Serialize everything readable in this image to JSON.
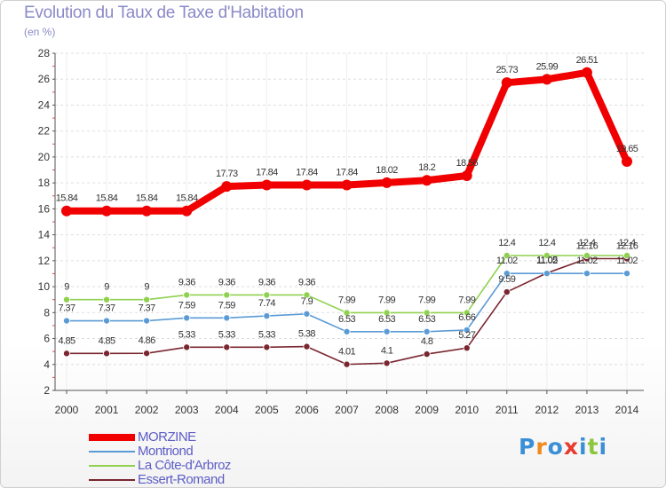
{
  "title": "Evolution du Taux de Taxe d'Habitation",
  "unit": "(en %)",
  "logo": {
    "letters": [
      "P",
      "r",
      "o",
      "x",
      "i",
      "t",
      "i"
    ],
    "colors": [
      "#3a8fd6",
      "#f08a1c",
      "#3a8fd6",
      "#e83a2e",
      "#3a8fd6",
      "#8cc63f",
      "#3a8fd6"
    ]
  },
  "chart_data": {
    "type": "line",
    "x": [
      "2000",
      "2001",
      "2002",
      "2003",
      "2004",
      "2005",
      "2006",
      "2007",
      "2008",
      "2009",
      "2010",
      "2011",
      "2012",
      "2013",
      "2014"
    ],
    "ylim": [
      2,
      28
    ],
    "yticks": [
      "2",
      "4",
      "6",
      "8",
      "10",
      "12",
      "14",
      "16",
      "18",
      "20",
      "22",
      "24",
      "26",
      "28"
    ],
    "grid": "horizontal dashed",
    "legend_position": "bottom-left",
    "series": [
      {
        "name": "MORZINE",
        "color": "#f00000",
        "values": [
          15.84,
          15.84,
          15.84,
          15.84,
          17.73,
          17.84,
          17.84,
          17.84,
          18.02,
          18.2,
          18.56,
          25.73,
          25.99,
          26.51,
          19.65
        ],
        "labels": [
          "15.84",
          "15.84",
          "15.84",
          "15.84",
          "17.73",
          "17.84",
          "17.84",
          "17.84",
          "18.02",
          "18.2",
          "18.56",
          "25.73",
          "25.99",
          "26.51",
          "19.65"
        ]
      },
      {
        "name": "Montriond",
        "color": "#5b9bd5",
        "values": [
          7.37,
          7.37,
          7.37,
          7.59,
          7.59,
          7.74,
          7.9,
          6.53,
          6.53,
          6.53,
          6.66,
          11.02,
          11.02,
          11.02,
          11.02
        ],
        "labels": [
          "7.37",
          "7.37",
          "7.37",
          "7.59",
          "7.59",
          "7.74",
          "7.9",
          "6.53",
          "6.53",
          "6.53",
          "6.66",
          "11.02",
          "11.02",
          "11.02",
          "11.02"
        ]
      },
      {
        "name": "La Côte-d'Arbroz",
        "color": "#8fd14f",
        "values": [
          9,
          9,
          9,
          9.36,
          9.36,
          9.36,
          9.36,
          7.99,
          7.99,
          7.99,
          7.99,
          12.4,
          12.4,
          12.4,
          12.4
        ],
        "labels": [
          "9",
          "9",
          "9",
          "9.36",
          "9.36",
          "9.36",
          "9.36",
          "7.99",
          "7.99",
          "7.99",
          "7.99",
          "12.4",
          "12.4",
          "12.4",
          "12.4"
        ]
      },
      {
        "name": "Essert-Romand",
        "color": "#7a2630",
        "values": [
          4.85,
          4.85,
          4.86,
          5.33,
          5.33,
          5.33,
          5.38,
          4.01,
          4.1,
          4.8,
          5.27,
          9.59,
          11.05,
          12.16,
          12.16
        ],
        "labels": [
          "4.85",
          "4.85",
          "4.86",
          "5.33",
          "5.33",
          "5.33",
          "5.38",
          "4.01",
          "4.1",
          "4.8",
          "5.27",
          "9.59",
          "11.05",
          "12.16",
          "12.16"
        ]
      }
    ]
  }
}
